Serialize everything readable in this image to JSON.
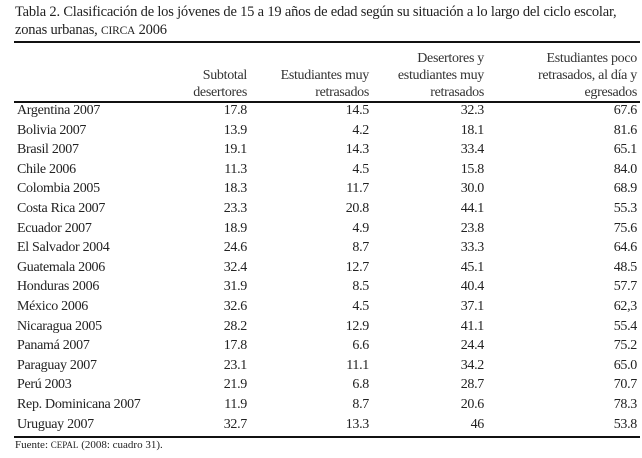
{
  "title": {
    "text": "Tabla 2. Clasificación de los jóvenes de 15 a 19 años de edad según su situación a lo largo del ciclo escolar, zonas urbanas,",
    "circa": "CIRCA",
    "year": "2006"
  },
  "columns": [
    "",
    "Subtotal desertores",
    "Estudiantes muy retrasados",
    "Desertores y estudiantes muy retrasados",
    "Estudiantes poco retrasados, al día y egresados"
  ],
  "rows": [
    [
      "Argentina 2007",
      "17.8",
      "14.5",
      "32.3",
      "67.6"
    ],
    [
      "Bolivia 2007",
      "13.9",
      "4.2",
      "18.1",
      "81.6"
    ],
    [
      "Brasil 2007",
      "19.1",
      "14.3",
      "33.4",
      "65.1"
    ],
    [
      "Chile 2006",
      "11.3",
      "4.5",
      "15.8",
      "84.0"
    ],
    [
      "Colombia 2005",
      "18.3",
      "11.7",
      "30.0",
      "68.9"
    ],
    [
      "Costa Rica 2007",
      "23.3",
      "20.8",
      "44.1",
      "55.3"
    ],
    [
      "Ecuador 2007",
      "18.9",
      "4.9",
      "23.8",
      "75.6"
    ],
    [
      "El Salvador 2004",
      "24.6",
      "8.7",
      "33.3",
      "64.6"
    ],
    [
      "Guatemala 2006",
      "32.4",
      "12.7",
      "45.1",
      "48.5"
    ],
    [
      "Honduras 2006",
      "31.9",
      "8.5",
      "40.4",
      "57.7"
    ],
    [
      "México 2006",
      "32.6",
      "4.5",
      "37.1",
      "62,3"
    ],
    [
      "Nicaragua 2005",
      "28.2",
      "12.9",
      "41.1",
      "55.4"
    ],
    [
      "Panamá 2007",
      "17.8",
      "6.6",
      "24.4",
      "75.2"
    ],
    [
      "Paraguay 2007",
      "23.1",
      "11.1",
      "34.2",
      "65.0"
    ],
    [
      "Perú 2003",
      "21.9",
      "6.8",
      "28.7",
      "70.7"
    ],
    [
      "Rep. Dominicana 2007",
      "11.9",
      "8.7",
      "20.6",
      "78.3"
    ],
    [
      "Uruguay 2007",
      "32.7",
      "13.3",
      "46",
      "53.8"
    ]
  ],
  "source": {
    "prefix": "Fuente:",
    "org": "CEPAL",
    "ref": "(2008: cuadro 31)."
  }
}
